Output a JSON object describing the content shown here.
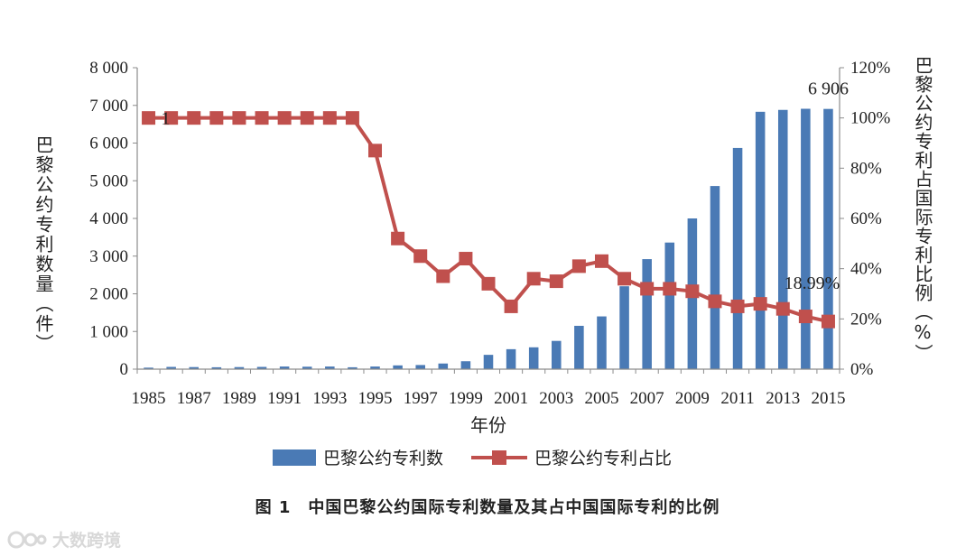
{
  "chart_data": {
    "type": "bar",
    "xlabel": "年份",
    "ylabel_left": "巴黎公约专利数量（件）",
    "ylabel_right": "巴黎公约专利占国际专利比例（%）",
    "ylim_left": [
      0,
      8000
    ],
    "ylim_right": [
      0,
      120
    ],
    "yticks_left": [
      "0",
      "1 000",
      "2 000",
      "3 000",
      "4 000",
      "5 000",
      "6 000",
      "7 000",
      "8 000"
    ],
    "yticks_right": [
      "0%",
      "20%",
      "40%",
      "60%",
      "80%",
      "100%",
      "120%"
    ],
    "grid": false,
    "legend_position": "bottom",
    "categories": [
      1985,
      1986,
      1987,
      1988,
      1989,
      1990,
      1991,
      1992,
      1993,
      1994,
      1995,
      1996,
      1997,
      1998,
      1999,
      2000,
      2001,
      2002,
      2003,
      2004,
      2005,
      2006,
      2007,
      2008,
      2009,
      2010,
      2011,
      2012,
      2013,
      2014,
      2015
    ],
    "x_tick_labels": [
      "1985",
      "1987",
      "1989",
      "1991",
      "1993",
      "1995",
      "1997",
      "1999",
      "2001",
      "2003",
      "2005",
      "2007",
      "2009",
      "2011",
      "2013",
      "2015"
    ],
    "series": [
      {
        "name": "巴黎公约专利数",
        "type": "bar",
        "axis": "left",
        "color": "#4a7ab5",
        "values": [
          40,
          60,
          55,
          50,
          55,
          60,
          70,
          65,
          70,
          50,
          70,
          100,
          110,
          150,
          210,
          380,
          530,
          580,
          750,
          1150,
          1400,
          2200,
          2920,
          3360,
          4000,
          4860,
          5870,
          6830,
          6880,
          6910,
          6906
        ]
      },
      {
        "name": "巴黎公约专利占比",
        "type": "line",
        "axis": "right",
        "color": "#c0504d",
        "marker": "square",
        "values": [
          100,
          100,
          100,
          100,
          100,
          100,
          100,
          100,
          100,
          100,
          87,
          52,
          45,
          37,
          44,
          34,
          25,
          36,
          35,
          41,
          43,
          36,
          32,
          32,
          31,
          27,
          25,
          26,
          24,
          21,
          18.99
        ]
      }
    ],
    "annotations": [
      {
        "text": "6 906",
        "series": 0,
        "index": 30
      },
      {
        "text": "1",
        "series": 1,
        "index": 0
      },
      {
        "text": "18.99%",
        "series": 1,
        "index": 30
      }
    ]
  },
  "caption": "图 1　中国巴黎公约国际专利数量及其占中国国际专利的比例",
  "watermark": {
    "text": "大数跨境",
    "icon": "brand-logo-icon"
  }
}
